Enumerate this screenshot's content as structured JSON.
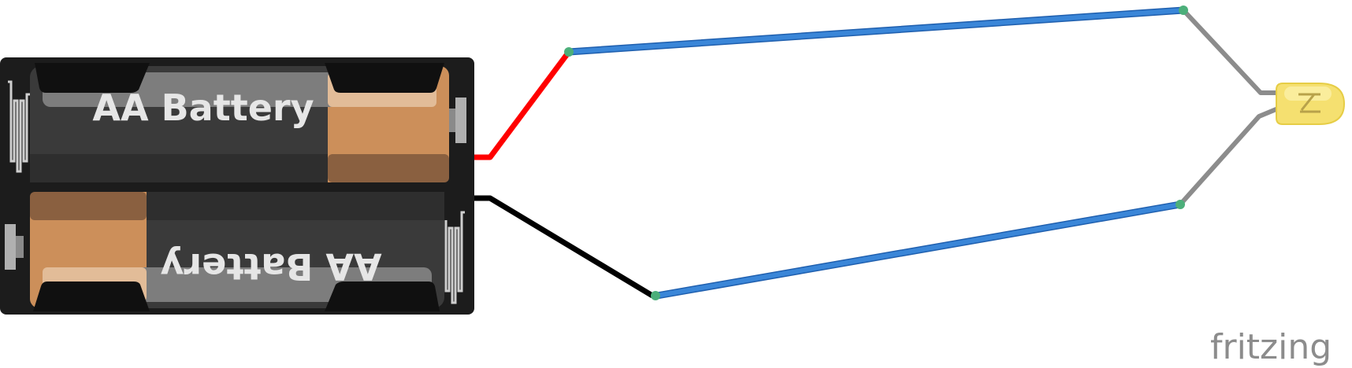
{
  "battery_holder": {
    "cell_top": {
      "label": "AA Battery"
    },
    "cell_bottom": {
      "label": "AA Battery"
    }
  },
  "led": {
    "color": "#f5e070"
  },
  "wires": {
    "battery_positive": {
      "color": "#ff0000"
    },
    "battery_negative": {
      "color": "#000000"
    },
    "upper_jumper": {
      "color": "#3a86d8"
    },
    "lower_jumper": {
      "color": "#3a86d8"
    },
    "led_leads": {
      "color": "#8c8c8c"
    }
  },
  "brand": {
    "text": "fritzing"
  }
}
